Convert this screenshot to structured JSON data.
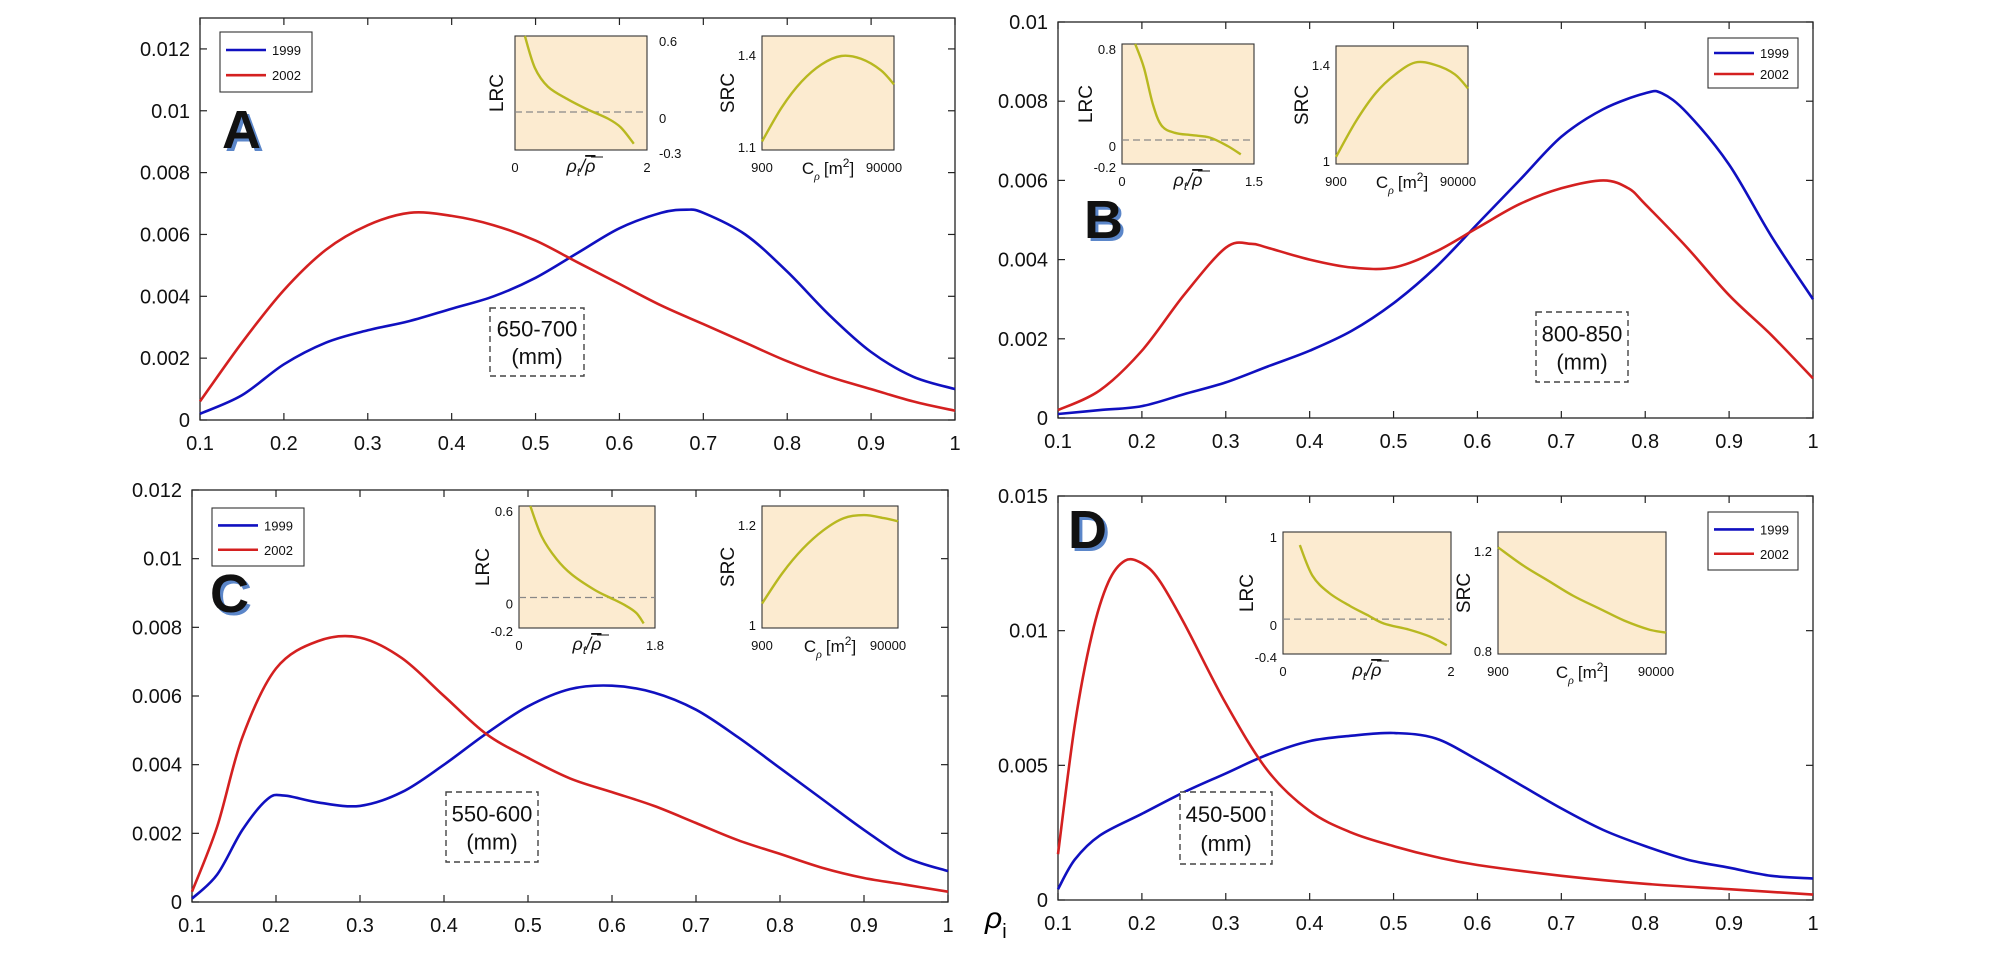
{
  "figure": {
    "x_symbol": "ρ",
    "x_subscript": "i"
  },
  "legend_labels": [
    "1999",
    "2002"
  ],
  "inset_labels": {
    "lrc": "LRC",
    "src": "SRC",
    "lrc_x_rho": "ρ",
    "lrc_x_sub": "t",
    "lrc_x_slash": "/",
    "lrc_x_bar": "ρ",
    "src_x_c": "C",
    "src_x_sub": "ρ",
    "src_x_unit_open": "[m",
    "src_x_unit_sup": "2",
    "src_x_unit_close": "]"
  },
  "colors": {
    "series_1999": "#1010c0",
    "series_2002": "#d42020",
    "inset_bg": "#fcebd0",
    "inset_line": "#b8b820"
  },
  "chart_data": [
    {
      "panel": "A",
      "type": "line",
      "annotation": [
        "650-700",
        "(mm)"
      ],
      "xlim": [
        0.1,
        1
      ],
      "ylim": [
        0,
        0.013
      ],
      "xticks": [
        "0.1",
        "0.2",
        "0.3",
        "0.4",
        "0.5",
        "0.6",
        "0.7",
        "0.8",
        "0.9",
        "1"
      ],
      "yticks": [
        "0",
        "0.002",
        "0.004",
        "0.006",
        "0.008",
        "0.01",
        "0.012"
      ],
      "series": [
        {
          "name": "1999",
          "x": [
            0.1,
            0.15,
            0.2,
            0.25,
            0.3,
            0.35,
            0.4,
            0.45,
            0.5,
            0.55,
            0.6,
            0.65,
            0.68,
            0.7,
            0.75,
            0.8,
            0.85,
            0.9,
            0.95,
            1.0
          ],
          "y": [
            0.0002,
            0.0008,
            0.0018,
            0.0025,
            0.0029,
            0.0032,
            0.0036,
            0.004,
            0.0046,
            0.0054,
            0.0062,
            0.0067,
            0.0068,
            0.0067,
            0.006,
            0.0048,
            0.0034,
            0.0022,
            0.0014,
            0.001
          ]
        },
        {
          "name": "2002",
          "x": [
            0.1,
            0.15,
            0.2,
            0.25,
            0.3,
            0.35,
            0.4,
            0.45,
            0.5,
            0.55,
            0.6,
            0.65,
            0.7,
            0.75,
            0.8,
            0.85,
            0.9,
            0.95,
            1.0
          ],
          "y": [
            0.0006,
            0.0025,
            0.0042,
            0.0055,
            0.0063,
            0.0067,
            0.0066,
            0.0063,
            0.0058,
            0.0051,
            0.0044,
            0.0037,
            0.0031,
            0.0025,
            0.0019,
            0.0014,
            0.001,
            0.0006,
            0.0003
          ]
        }
      ],
      "lrc": {
        "xticks": [
          "0",
          "2"
        ],
        "yticks": [
          "0.6",
          "0",
          "-0.3"
        ],
        "xlim": [
          0,
          2
        ],
        "ylim": [
          -0.3,
          0.6
        ],
        "ref": 0,
        "x": [
          0.15,
          0.3,
          0.5,
          0.8,
          1.1,
          1.4,
          1.6,
          1.8
        ],
        "y": [
          0.6,
          0.35,
          0.2,
          0.1,
          0.02,
          -0.05,
          -0.12,
          -0.25
        ]
      },
      "src": {
        "xticks": [
          "900",
          "90000"
        ],
        "yticks": [
          "1.4",
          "1.1"
        ],
        "ylim": [
          1.1,
          1.5
        ],
        "x": [
          0,
          0.15,
          0.3,
          0.45,
          0.6,
          0.75,
          0.9,
          1.0
        ],
        "y": [
          1.13,
          1.25,
          1.34,
          1.4,
          1.43,
          1.42,
          1.38,
          1.33
        ]
      }
    },
    {
      "panel": "B",
      "type": "line",
      "annotation": [
        "800-850",
        "(mm)"
      ],
      "xlim": [
        0.1,
        1
      ],
      "ylim": [
        0,
        0.01
      ],
      "xticks": [
        "0.1",
        "0.2",
        "0.3",
        "0.4",
        "0.5",
        "0.6",
        "0.7",
        "0.8",
        "0.9",
        "1"
      ],
      "yticks": [
        "0",
        "0.002",
        "0.004",
        "0.006",
        "0.008",
        "0.01"
      ],
      "series": [
        {
          "name": "1999",
          "x": [
            0.1,
            0.15,
            0.2,
            0.25,
            0.3,
            0.35,
            0.4,
            0.45,
            0.5,
            0.55,
            0.6,
            0.65,
            0.7,
            0.75,
            0.8,
            0.82,
            0.85,
            0.9,
            0.95,
            1.0
          ],
          "y": [
            0.0001,
            0.0002,
            0.0003,
            0.0006,
            0.0009,
            0.0013,
            0.0017,
            0.0022,
            0.0029,
            0.0038,
            0.0049,
            0.006,
            0.0071,
            0.0078,
            0.0082,
            0.0082,
            0.0077,
            0.0064,
            0.0046,
            0.003
          ]
        },
        {
          "name": "2002",
          "x": [
            0.1,
            0.15,
            0.2,
            0.25,
            0.3,
            0.33,
            0.35,
            0.4,
            0.45,
            0.5,
            0.55,
            0.6,
            0.65,
            0.7,
            0.75,
            0.78,
            0.8,
            0.85,
            0.9,
            0.95,
            1.0
          ],
          "y": [
            0.0002,
            0.0007,
            0.0017,
            0.0031,
            0.0043,
            0.0044,
            0.0043,
            0.004,
            0.0038,
            0.0038,
            0.0042,
            0.0048,
            0.0054,
            0.0058,
            0.006,
            0.0058,
            0.0054,
            0.0043,
            0.0031,
            0.0021,
            0.001
          ]
        }
      ],
      "lrc": {
        "xticks": [
          "0",
          "1.5"
        ],
        "yticks": [
          "0.8",
          "0",
          "-0.2"
        ],
        "xlim": [
          0,
          1.5
        ],
        "ylim": [
          -0.2,
          0.8
        ],
        "ref": 0,
        "x": [
          0.15,
          0.25,
          0.35,
          0.45,
          0.6,
          0.8,
          1.0,
          1.2,
          1.35
        ],
        "y": [
          0.8,
          0.6,
          0.3,
          0.12,
          0.06,
          0.04,
          0.02,
          -0.05,
          -0.12
        ]
      },
      "src": {
        "xticks": [
          "900",
          "90000"
        ],
        "yticks": [
          "1.4",
          "1"
        ],
        "ylim": [
          1.0,
          1.5
        ],
        "x": [
          0,
          0.15,
          0.3,
          0.45,
          0.6,
          0.75,
          0.9,
          1.0
        ],
        "y": [
          1.03,
          1.18,
          1.3,
          1.38,
          1.43,
          1.42,
          1.38,
          1.32
        ]
      }
    },
    {
      "panel": "C",
      "type": "line",
      "annotation": [
        "550-600",
        "(mm)"
      ],
      "xlim": [
        0.1,
        1
      ],
      "ylim": [
        0,
        0.012
      ],
      "xticks": [
        "0.1",
        "0.2",
        "0.3",
        "0.4",
        "0.5",
        "0.6",
        "0.7",
        "0.8",
        "0.9",
        "1"
      ],
      "yticks": [
        "0",
        "0.002",
        "0.004",
        "0.006",
        "0.008",
        "0.01",
        "0.012"
      ],
      "series": [
        {
          "name": "1999",
          "x": [
            0.1,
            0.13,
            0.16,
            0.19,
            0.21,
            0.25,
            0.3,
            0.35,
            0.4,
            0.45,
            0.5,
            0.55,
            0.6,
            0.65,
            0.7,
            0.75,
            0.8,
            0.85,
            0.9,
            0.95,
            1.0
          ],
          "y": [
            0.0001,
            0.0008,
            0.0021,
            0.003,
            0.0031,
            0.0029,
            0.0028,
            0.0032,
            0.004,
            0.0049,
            0.0057,
            0.0062,
            0.0063,
            0.0061,
            0.0056,
            0.0048,
            0.0039,
            0.003,
            0.0021,
            0.0013,
            0.0009
          ]
        },
        {
          "name": "2002",
          "x": [
            0.1,
            0.13,
            0.16,
            0.2,
            0.25,
            0.3,
            0.35,
            0.4,
            0.45,
            0.5,
            0.55,
            0.6,
            0.65,
            0.7,
            0.75,
            0.8,
            0.85,
            0.9,
            0.95,
            1.0
          ],
          "y": [
            0.0003,
            0.0022,
            0.0048,
            0.0068,
            0.0076,
            0.0077,
            0.0071,
            0.006,
            0.0049,
            0.0042,
            0.0036,
            0.0032,
            0.0028,
            0.0023,
            0.0018,
            0.0014,
            0.001,
            0.0007,
            0.0005,
            0.0003
          ]
        }
      ],
      "lrc": {
        "xticks": [
          "0",
          "1.8"
        ],
        "yticks": [
          "0.6",
          "0",
          "-0.2"
        ],
        "xlim": [
          0,
          1.8
        ],
        "ylim": [
          -0.2,
          0.6
        ],
        "ref": 0,
        "x": [
          0.15,
          0.3,
          0.5,
          0.7,
          1.0,
          1.2,
          1.4,
          1.55,
          1.65
        ],
        "y": [
          0.6,
          0.4,
          0.25,
          0.15,
          0.05,
          0.0,
          -0.05,
          -0.1,
          -0.17
        ]
      },
      "src": {
        "xticks": [
          "900",
          "90000"
        ],
        "yticks": [
          "1.2",
          "1"
        ],
        "ylim": [
          1.0,
          1.2
        ],
        "x": [
          0,
          0.15,
          0.3,
          0.45,
          0.6,
          0.75,
          0.9,
          1.0
        ],
        "y": [
          1.04,
          1.09,
          1.13,
          1.16,
          1.18,
          1.185,
          1.18,
          1.175
        ]
      }
    },
    {
      "panel": "D",
      "type": "line",
      "annotation": [
        "450-500",
        "(mm)"
      ],
      "xlim": [
        0.1,
        1
      ],
      "ylim": [
        0,
        0.015
      ],
      "xticks": [
        "0.1",
        "0.2",
        "0.3",
        "0.4",
        "0.5",
        "0.6",
        "0.7",
        "0.8",
        "0.9",
        "1"
      ],
      "yticks": [
        "0",
        "0.005",
        "0.01",
        "0.015"
      ],
      "series": [
        {
          "name": "1999",
          "x": [
            0.1,
            0.12,
            0.15,
            0.2,
            0.25,
            0.3,
            0.35,
            0.4,
            0.45,
            0.5,
            0.55,
            0.6,
            0.65,
            0.7,
            0.75,
            0.8,
            0.85,
            0.9,
            0.95,
            1.0
          ],
          "y": [
            0.0004,
            0.0015,
            0.0024,
            0.0032,
            0.004,
            0.0047,
            0.0054,
            0.0059,
            0.0061,
            0.0062,
            0.006,
            0.0052,
            0.0043,
            0.0034,
            0.0026,
            0.002,
            0.0015,
            0.0012,
            0.0009,
            0.0008
          ]
        },
        {
          "name": "2002",
          "x": [
            0.1,
            0.12,
            0.14,
            0.16,
            0.18,
            0.2,
            0.22,
            0.25,
            0.3,
            0.35,
            0.4,
            0.45,
            0.5,
            0.55,
            0.6,
            0.7,
            0.8,
            0.9,
            1.0
          ],
          "y": [
            0.0017,
            0.0065,
            0.0098,
            0.0118,
            0.0126,
            0.0125,
            0.0119,
            0.0103,
            0.0073,
            0.0048,
            0.0033,
            0.0025,
            0.002,
            0.0016,
            0.0013,
            0.0009,
            0.0006,
            0.0004,
            0.0002
          ]
        }
      ],
      "lrc": {
        "xticks": [
          "0",
          "2"
        ],
        "yticks": [
          "1",
          "0",
          "-0.4"
        ],
        "xlim": [
          0,
          2
        ],
        "ylim": [
          -0.4,
          1
        ],
        "ref": 0,
        "x": [
          0.2,
          0.35,
          0.55,
          0.8,
          1.0,
          1.2,
          1.5,
          1.75,
          1.95
        ],
        "y": [
          0.85,
          0.5,
          0.3,
          0.15,
          0.05,
          -0.05,
          -0.12,
          -0.2,
          -0.3
        ]
      },
      "src": {
        "xticks": [
          "900",
          "90000"
        ],
        "yticks": [
          "1.2",
          "0.8"
        ],
        "ylim": [
          0.8,
          1.2
        ],
        "x": [
          0,
          0.15,
          0.3,
          0.45,
          0.6,
          0.75,
          0.9,
          1.0
        ],
        "y": [
          1.15,
          1.09,
          1.04,
          0.99,
          0.95,
          0.91,
          0.88,
          0.87
        ]
      }
    }
  ]
}
